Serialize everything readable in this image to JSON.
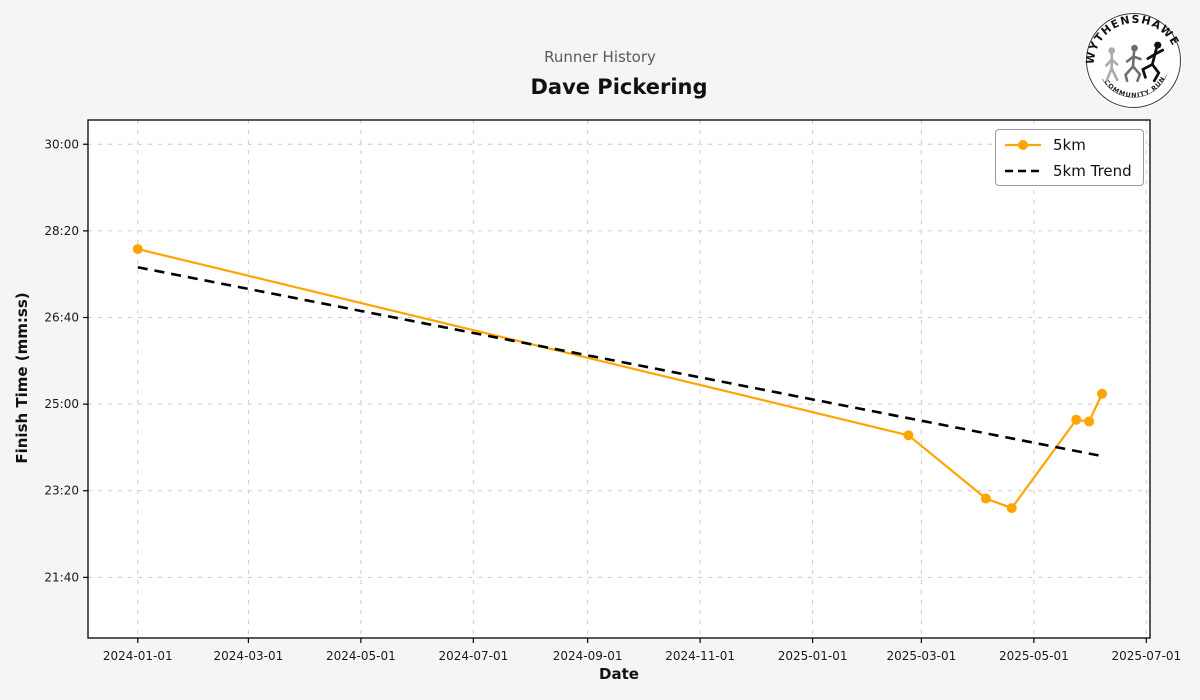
{
  "page": {
    "background": "#f5f5f5",
    "plot_background": "#ffffff",
    "grid_color": "#cccccc"
  },
  "logo": {
    "top_text": "WYTHENSHAWE",
    "bottom_text": "COMMUNITY RUN"
  },
  "chart_data": {
    "type": "line",
    "suptitle": "Runner History",
    "title": "Dave Pickering",
    "xlabel": "Date",
    "ylabel": "Finish Time (mm:ss)",
    "x_ticks": [
      "2024-01-01",
      "2024-03-01",
      "2024-05-01",
      "2024-07-01",
      "2024-09-01",
      "2024-11-01",
      "2025-01-01",
      "2025-03-01",
      "2025-05-01",
      "2025-07-01"
    ],
    "y_ticks": [
      "30:00",
      "28:20",
      "26:40",
      "25:00",
      "23:20",
      "21:40"
    ],
    "xlim": [
      "2023-12-05",
      "2025-07-03"
    ],
    "ylim_seconds": [
      1230,
      1828
    ],
    "grid": true,
    "legend_position": "upper right",
    "legend": [
      "5km",
      "5km Trend"
    ],
    "series": [
      {
        "name": "5km",
        "color": "#FFA500",
        "style": "solid",
        "marker": "circle",
        "points": [
          {
            "date": "2024-01-01",
            "time": "27:59"
          },
          {
            "date": "2025-02-22",
            "time": "24:24"
          },
          {
            "date": "2025-04-05",
            "time": "23:11"
          },
          {
            "date": "2025-04-19",
            "time": "23:00"
          },
          {
            "date": "2025-05-24",
            "time": "24:42"
          },
          {
            "date": "2025-05-31",
            "time": "24:40"
          },
          {
            "date": "2025-06-07",
            "time": "25:12"
          }
        ]
      },
      {
        "name": "5km Trend",
        "color": "#000000",
        "style": "dashed",
        "marker": "none",
        "points": [
          {
            "date": "2024-01-01",
            "time": "27:38"
          },
          {
            "date": "2025-06-07",
            "time": "24:00"
          }
        ]
      }
    ]
  }
}
